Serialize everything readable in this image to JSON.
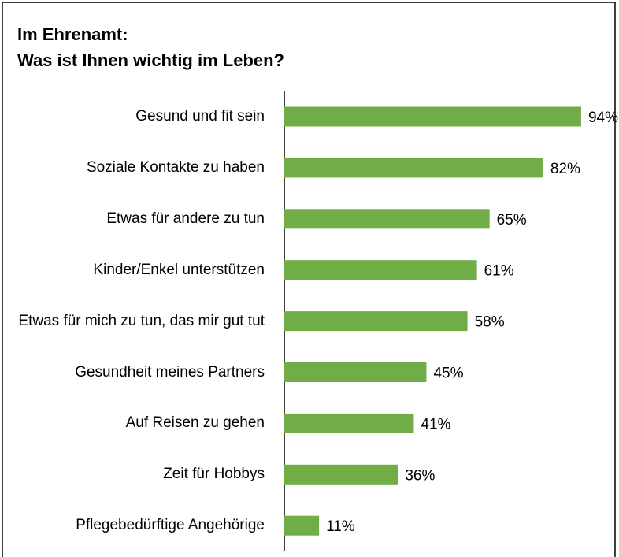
{
  "chart_data": {
    "type": "bar",
    "orientation": "horizontal",
    "title": [
      "Im Ehrenamt:",
      "Was ist Ihnen wichtig im Leben?"
    ],
    "categories": [
      "Gesund und fit sein",
      "Soziale Kontakte zu haben",
      "Etwas für andere zu tun",
      "Kinder/Enkel unterstützen",
      "Etwas für mich zu tun, das mir gut tut",
      "Gesundheit meines Partners",
      "Auf Reisen zu gehen",
      "Zeit für Hobbys",
      "Pflegebedürftige Angehörige"
    ],
    "values": [
      94,
      82,
      65,
      61,
      58,
      45,
      41,
      36,
      11
    ],
    "value_labels": [
      "94%",
      "82%",
      "65%",
      "61%",
      "58%",
      "45%",
      "41%",
      "36%",
      "11%"
    ],
    "color": "#70ad47",
    "xlim": [
      0,
      100
    ]
  }
}
